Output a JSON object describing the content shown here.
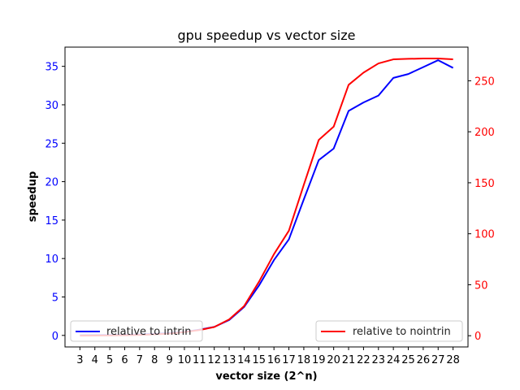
{
  "chart_data": {
    "type": "line",
    "title": "gpu speedup vs vector size",
    "xlabel": "vector size (2^n)",
    "ylabel": "speedup",
    "ylabel_right": "",
    "x": [
      3,
      4,
      5,
      6,
      7,
      8,
      9,
      10,
      11,
      12,
      13,
      14,
      15,
      16,
      17,
      18,
      19,
      20,
      21,
      22,
      23,
      24,
      25,
      26,
      27,
      28
    ],
    "xticklabels": [
      "3",
      "4",
      "5",
      "6",
      "7",
      "8",
      "9",
      "10",
      "11",
      "12",
      "13",
      "14",
      "15",
      "16",
      "17",
      "18",
      "19",
      "20",
      "21",
      "22",
      "23",
      "24",
      "25",
      "26",
      "27",
      "28"
    ],
    "ylim_left": [
      -1.5,
      37.5
    ],
    "ylim_right": [
      -11,
      283
    ],
    "yticks_left": [
      0,
      5,
      10,
      15,
      20,
      25,
      30,
      35
    ],
    "yticks_right": [
      0,
      50,
      100,
      150,
      200,
      250
    ],
    "left_tick_color": "#0000ff",
    "right_tick_color": "#ff0000",
    "grid": false,
    "series": [
      {
        "name": "relative to intrin",
        "axis": "left",
        "color": "#0000ff",
        "legend_position": "lower-left",
        "values": [
          0.02,
          0.03,
          0.05,
          0.08,
          0.12,
          0.2,
          0.3,
          0.45,
          0.75,
          1.1,
          2.0,
          3.7,
          6.5,
          9.8,
          12.5,
          17.7,
          22.8,
          24.3,
          29.2,
          30.3,
          31.2,
          33.5,
          34.0,
          34.9,
          35.8,
          34.8
        ]
      },
      {
        "name": "relative to nointrin",
        "axis": "right",
        "color": "#ff0000",
        "legend_position": "lower-right",
        "values": [
          0.1,
          0.2,
          0.3,
          0.5,
          0.8,
          1.3,
          2.0,
          3.5,
          5.5,
          8.5,
          16,
          29,
          53,
          80,
          103,
          148,
          192,
          205,
          246,
          258,
          267,
          271,
          271.5,
          271.8,
          271.8,
          271
        ]
      }
    ]
  }
}
